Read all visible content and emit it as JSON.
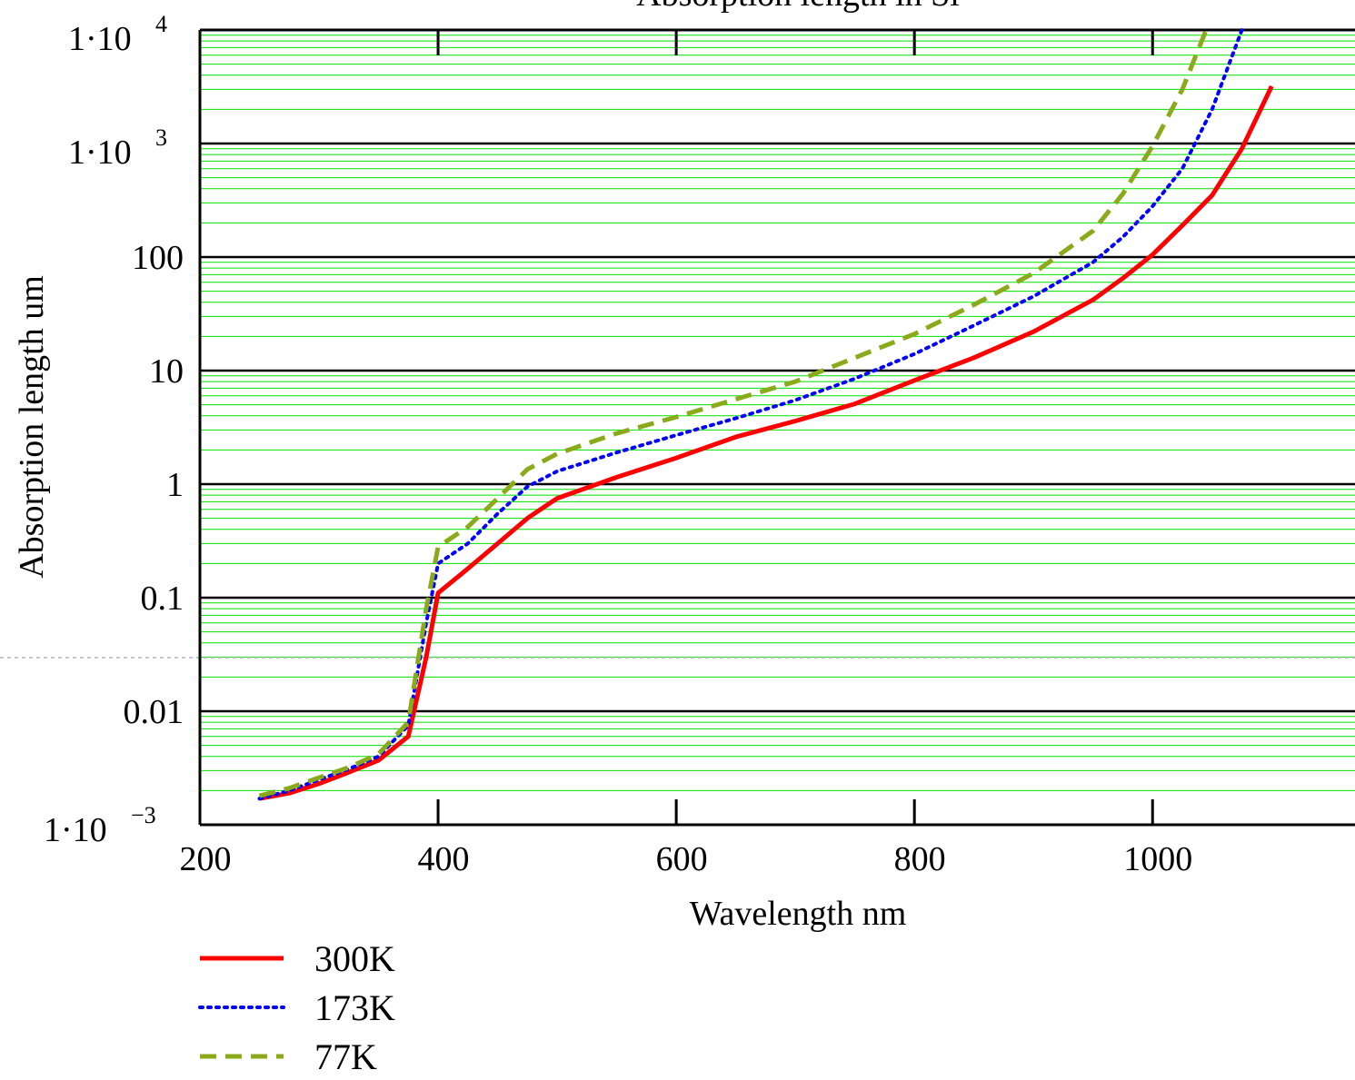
{
  "chart_data": {
    "type": "line",
    "title": "Absorption length in Si",
    "xlabel": "Wavelength nm",
    "ylabel": "Absorption length um",
    "xlim": [
      200,
      1170
    ],
    "ylim": [
      0.001,
      10000
    ],
    "yscale": "log",
    "grid": true,
    "legend_position": "bottom-left",
    "x_ticks": [
      {
        "value": 200,
        "label": "200"
      },
      {
        "value": 400,
        "label": "400"
      },
      {
        "value": 600,
        "label": "600"
      },
      {
        "value": 800,
        "label": "800"
      },
      {
        "value": 1000,
        "label": "1000"
      }
    ],
    "y_ticks": [
      {
        "value": 0.001,
        "mantissa": "1·10",
        "exp": "−3"
      },
      {
        "value": 0.01,
        "label": "0.01"
      },
      {
        "value": 0.1,
        "label": "0.1"
      },
      {
        "value": 1,
        "label": "1"
      },
      {
        "value": 10,
        "label": "10"
      },
      {
        "value": 100,
        "label": "100"
      },
      {
        "value": 1000,
        "mantissa": "1·10",
        "exp": "3"
      },
      {
        "value": 10000,
        "mantissa": "1·10",
        "exp": "4"
      }
    ],
    "series": [
      {
        "name": "300K",
        "color": "#ff0000",
        "dash": "solid",
        "x": [
          250,
          275,
          300,
          325,
          350,
          375,
          390,
          400,
          425,
          450,
          475,
          500,
          550,
          600,
          650,
          700,
          750,
          800,
          850,
          900,
          950,
          975,
          1000,
          1025,
          1050,
          1075,
          1100
        ],
        "y": [
          0.0017,
          0.0019,
          0.0023,
          0.0029,
          0.0037,
          0.006,
          0.03,
          0.11,
          0.18,
          0.3,
          0.5,
          0.75,
          1.15,
          1.7,
          2.6,
          3.6,
          5.1,
          8.2,
          13,
          22,
          42,
          65,
          105,
          190,
          350,
          900,
          3200
        ]
      },
      {
        "name": "173K",
        "color": "#0000ff",
        "dash": "dotted",
        "x": [
          250,
          275,
          300,
          325,
          350,
          375,
          390,
          400,
          425,
          450,
          475,
          500,
          550,
          600,
          650,
          700,
          750,
          800,
          850,
          900,
          950,
          975,
          1000,
          1025,
          1050,
          1075
        ],
        "y": [
          0.0017,
          0.002,
          0.0025,
          0.0031,
          0.004,
          0.0075,
          0.06,
          0.2,
          0.3,
          0.55,
          0.95,
          1.3,
          1.9,
          2.7,
          3.8,
          5.5,
          8.5,
          14,
          25,
          45,
          90,
          150,
          280,
          600,
          2000,
          10000
        ]
      },
      {
        "name": "77K",
        "color": "#8aaa1a",
        "dash": "dashed",
        "x": [
          250,
          275,
          300,
          325,
          350,
          375,
          390,
          400,
          425,
          450,
          475,
          500,
          550,
          600,
          650,
          700,
          750,
          800,
          850,
          900,
          950,
          975,
          1000,
          1025,
          1045
        ],
        "y": [
          0.0018,
          0.0021,
          0.0026,
          0.0032,
          0.0042,
          0.008,
          0.08,
          0.28,
          0.42,
          0.75,
          1.35,
          1.85,
          2.8,
          3.9,
          5.6,
          8.0,
          13,
          21,
          38,
          72,
          170,
          360,
          950,
          3000,
          10000
        ]
      }
    ]
  }
}
